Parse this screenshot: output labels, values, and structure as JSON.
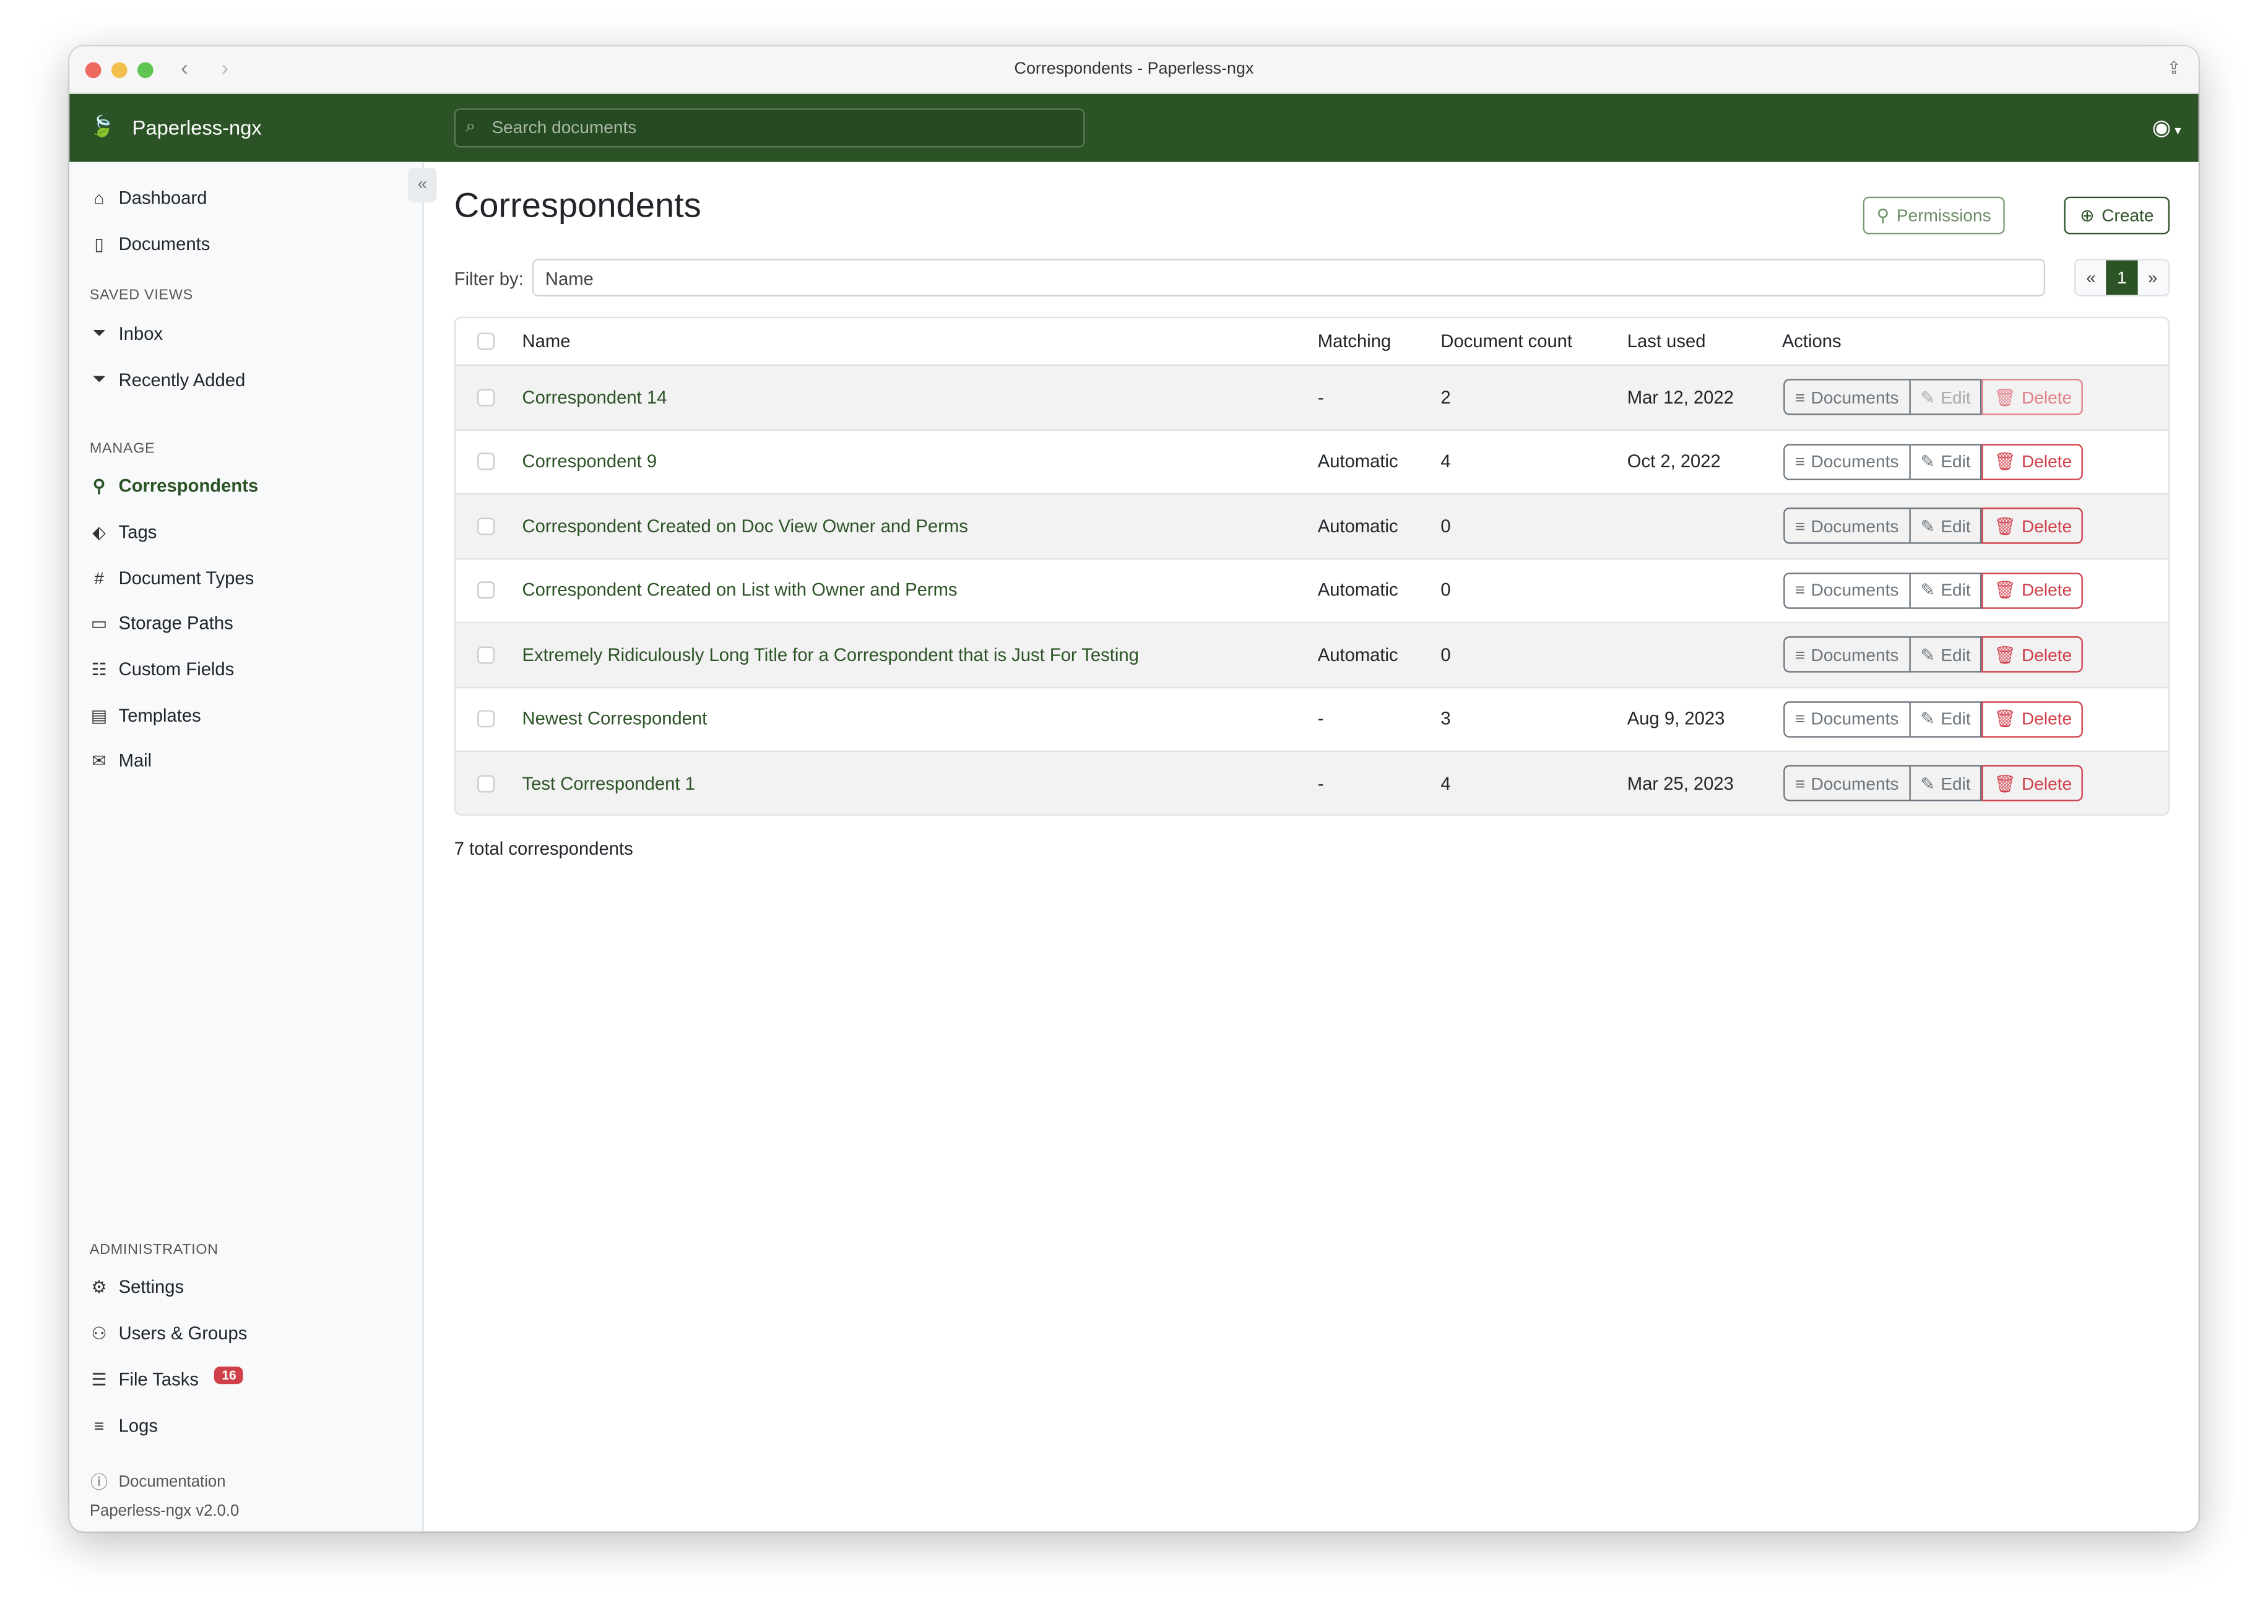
{
  "window": {
    "title": "Correspondents - Paperless-ngx"
  },
  "header": {
    "brand": "Paperless-ngx",
    "search_placeholder": "Search documents"
  },
  "sidebar": {
    "items": [
      {
        "label": "Dashboard",
        "icon": "house-icon"
      },
      {
        "label": "Documents",
        "icon": "files-icon"
      }
    ],
    "saved_views_heading": "SAVED VIEWS",
    "saved_views": [
      {
        "label": "Inbox",
        "icon": "funnel-icon"
      },
      {
        "label": "Recently Added",
        "icon": "funnel-icon"
      }
    ],
    "manage_heading": "MANAGE",
    "manage": [
      {
        "label": "Correspondents",
        "icon": "person-icon",
        "active": true
      },
      {
        "label": "Tags",
        "icon": "tags-icon"
      },
      {
        "label": "Document Types",
        "icon": "hash-icon"
      },
      {
        "label": "Storage Paths",
        "icon": "folder-icon"
      },
      {
        "label": "Custom Fields",
        "icon": "ui-radios-icon"
      },
      {
        "label": "Templates",
        "icon": "file-text-icon"
      },
      {
        "label": "Mail",
        "icon": "envelope-icon"
      }
    ],
    "admin_heading": "ADMINISTRATION",
    "admin": [
      {
        "label": "Settings",
        "icon": "gear-icon"
      },
      {
        "label": "Users & Groups",
        "icon": "people-icon"
      },
      {
        "label": "File Tasks",
        "icon": "list-task-icon",
        "badge": "16"
      },
      {
        "label": "Logs",
        "icon": "text-left-icon"
      }
    ],
    "documentation": "Documentation",
    "version": "Paperless-ngx v2.0.0"
  },
  "main": {
    "title": "Correspondents",
    "permissions_label": "Permissions",
    "create_label": "Create",
    "filter_label": "Filter by:",
    "filter_placeholder": "Name",
    "pager": {
      "prev": "«",
      "current": "1",
      "next": "»"
    },
    "columns": [
      "Name",
      "Matching",
      "Document count",
      "Last used",
      "Actions"
    ],
    "actions": {
      "documents": "Documents",
      "edit": "Edit",
      "delete": "Delete"
    },
    "rows": [
      {
        "name": "Correspondent 14",
        "matching": "-",
        "count": "2",
        "last_used": "Mar 12, 2022",
        "disabled": true
      },
      {
        "name": "Correspondent 9",
        "matching": "Automatic",
        "count": "4",
        "last_used": "Oct 2, 2022"
      },
      {
        "name": "Correspondent Created on Doc View Owner and Perms",
        "matching": "Automatic",
        "count": "0",
        "last_used": ""
      },
      {
        "name": "Correspondent Created on List with Owner and Perms",
        "matching": "Automatic",
        "count": "0",
        "last_used": ""
      },
      {
        "name": "Extremely Ridiculously Long Title for a Correspondent that is Just For Testing",
        "matching": "Automatic",
        "count": "0",
        "last_used": ""
      },
      {
        "name": "Newest Correspondent",
        "matching": "-",
        "count": "3",
        "last_used": "Aug 9, 2023"
      },
      {
        "name": "Test Correspondent 1",
        "matching": "-",
        "count": "4",
        "last_used": "Mar 25, 2023"
      }
    ],
    "total": "7 total correspondents"
  },
  "colors": {
    "brand": "#2c5326",
    "danger": "#d0404a"
  }
}
